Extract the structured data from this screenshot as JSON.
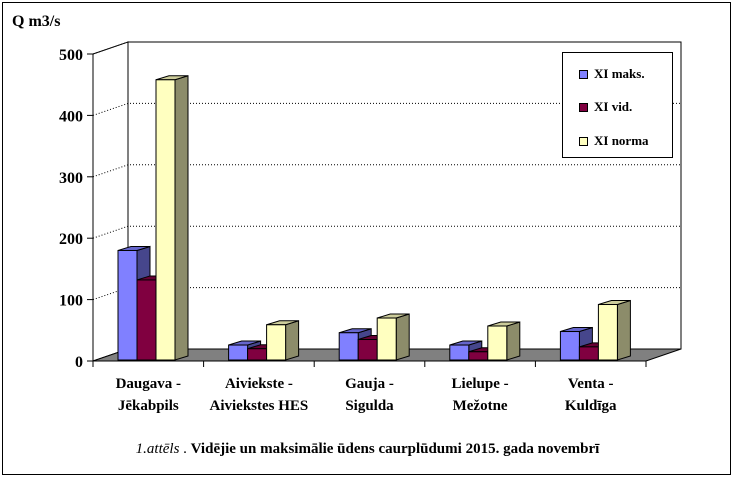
{
  "chart_data": {
    "type": "bar",
    "title": "",
    "ylabel": "Q m3/s",
    "xlabel": "",
    "ylim": [
      0,
      500
    ],
    "yticks": [
      0,
      100,
      200,
      300,
      400,
      500
    ],
    "categories": [
      [
        "Daugava -",
        "Jēkabpils"
      ],
      [
        "Aiviekste -",
        "Aiviekstes HES"
      ],
      [
        "Gauja -",
        "Sigulda"
      ],
      [
        "Lielupe -",
        "Mežotne"
      ],
      [
        "Venta -",
        "Kuldīga"
      ]
    ],
    "series": [
      {
        "name": "XI maks.",
        "color": "#8080FF",
        "values": [
          180,
          26,
          46,
          26,
          48
        ]
      },
      {
        "name": "XI vid.",
        "color": "#800040",
        "values": [
          132,
          20,
          35,
          15,
          23
        ]
      },
      {
        "name": "XI norma",
        "color": "#FFFFC0",
        "values": [
          458,
          59,
          70,
          57,
          92
        ]
      }
    ],
    "grid": "dotted horizontal",
    "legend_position": "top-right",
    "style": "3d"
  },
  "caption": {
    "number": "1.attēls",
    "separator": " . ",
    "text": "Vidējie un maksimālie ūdens caurplūdumi  2015. gada novembrī"
  }
}
